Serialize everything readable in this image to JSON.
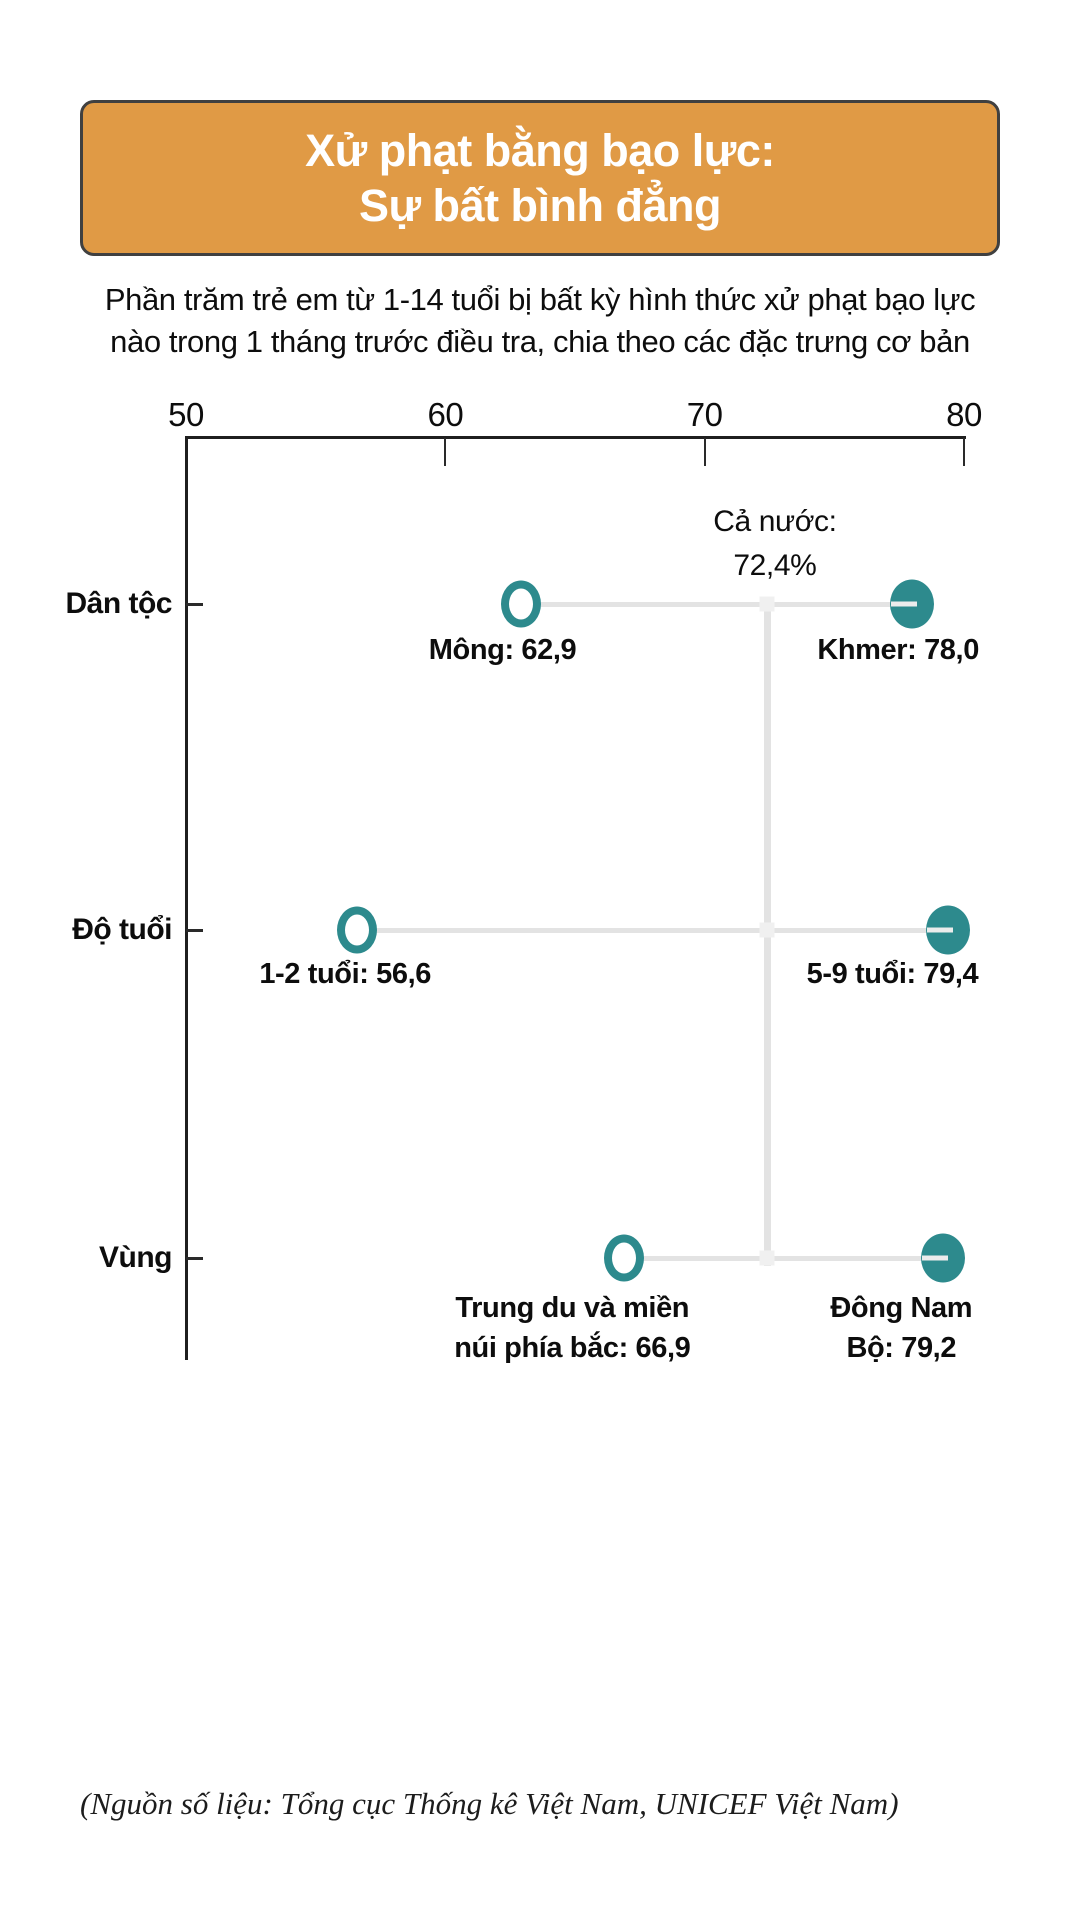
{
  "title": {
    "line1": "Xử phạt bằng bạo lực:",
    "line2": "Sự bất bình đẳng"
  },
  "subtitle": {
    "line1": "Phần trăm trẻ em từ 1-14 tuổi bị bất kỳ hình thức xử phạt bạo lực",
    "line2": "nào trong 1 tháng trước điều tra, chia theo các đặc trưng cơ bản"
  },
  "source": "(Nguồn số liệu: Tổng cục Thống kê Việt Nam, UNICEF Việt Nam)",
  "colors": {
    "banner_orange": "#e09a45",
    "dot_teal": "#2d8a8d",
    "line_gray": "#e3e3e3"
  },
  "chart_data": {
    "type": "dumbbell",
    "xlim": [
      50,
      80
    ],
    "x_ticks": [
      "50",
      "60",
      "70",
      "80"
    ],
    "x_tick_values": [
      50,
      60,
      70,
      80
    ],
    "grid": false,
    "reference": {
      "value": 72.4,
      "label_line1": "Cả nước:",
      "label_line2": "72,4%"
    },
    "rows": [
      {
        "category": "Dân tộc",
        "low": {
          "name": "Mông",
          "value": 62.9,
          "label_line1": "Mông: 62,9",
          "label_line2": ""
        },
        "high": {
          "name": "Khmer",
          "value": 78.0,
          "label_line1": "Khmer: 78,0",
          "label_line2": ""
        }
      },
      {
        "category": "Độ tuổi",
        "low": {
          "name": "1-2 tuổi",
          "value": 56.6,
          "label_line1": "1-2 tuổi: 56,6",
          "label_line2": ""
        },
        "high": {
          "name": "5-9 tuổi",
          "value": 79.4,
          "label_line1": "5-9 tuổi: 79,4",
          "label_line2": ""
        }
      },
      {
        "category": "Vùng",
        "low": {
          "name": "Trung du và miền núi phía bắc",
          "value": 66.9,
          "label_line1": "Trung du và miền",
          "label_line2": "núi phía bắc: 66,9"
        },
        "high": {
          "name": "Đông Nam Bộ",
          "value": 79.2,
          "label_line1": "Đông Nam",
          "label_line2": "Bộ: 79,2"
        }
      }
    ]
  }
}
